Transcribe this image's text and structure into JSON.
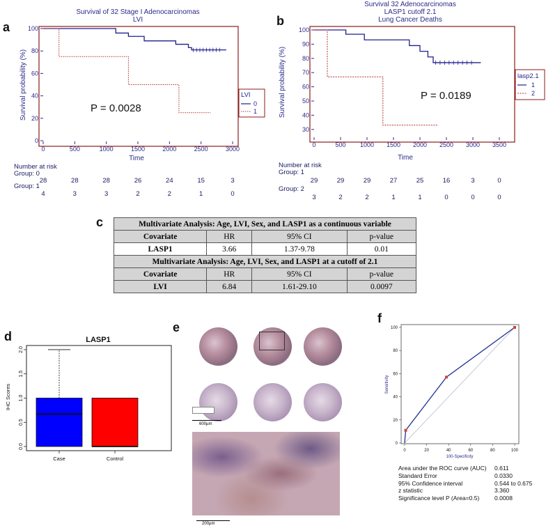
{
  "panels": {
    "a": {
      "letter": "a",
      "title_lines": [
        "Survival of 32 Stage I Adenocarcinomas",
        "LVI"
      ],
      "pvalue": "P = 0.0028",
      "legend_title": "LVI",
      "risk_header": "Number at risk",
      "risk_groups": [
        {
          "label": "Group: 0",
          "values": [
            "28",
            "28",
            "28",
            "26",
            "24",
            "15",
            "3"
          ]
        },
        {
          "label": "Group: 1",
          "values": [
            "4",
            "3",
            "3",
            "2",
            "2",
            "1",
            "0"
          ]
        }
      ]
    },
    "b": {
      "letter": "b",
      "title_lines": [
        "Survival 32 Adenocarcinomas",
        "LASP1 cutoff 2.1",
        "Lung Cancer Deaths"
      ],
      "pvalue": "P = 0.0189",
      "legend_title": "lasp2.1",
      "risk_header": "Number at risk",
      "risk_groups": [
        {
          "label": "Group: 1",
          "values": [
            "29",
            "29",
            "29",
            "27",
            "25",
            "16",
            "3",
            "0"
          ]
        },
        {
          "label": "Group: 2",
          "values": [
            "3",
            "2",
            "2",
            "1",
            "1",
            "0",
            "0",
            "0"
          ]
        }
      ]
    },
    "c": {
      "letter": "c",
      "header1": "Multivariate Analysis: Age, LVI, Sex, and LASP1 as a continuous variable",
      "header2": "Multivariate Analysis: Age, LVI, Sex, and LASP1 at a cutoff of 2.1",
      "columns": [
        "Covariate",
        "HR",
        "95% CI",
        "p-value"
      ],
      "row1": [
        "LASP1",
        "3.66",
        "1.37-9.78",
        "0.01"
      ],
      "row2": [
        "LVI",
        "6.84",
        "1.61-29.10",
        "0.0097"
      ]
    },
    "d": {
      "letter": "d"
    },
    "e": {
      "letter": "e",
      "scale_top": "600µm",
      "scale_bottom": "200µm"
    },
    "f": {
      "letter": "f",
      "stats": [
        {
          "label": "Area under the ROC curve (AUC)",
          "value": "0.611"
        },
        {
          "label": "Standard Error",
          "value": "0.0330"
        },
        {
          "label": "95% Confidence interval",
          "value": "0.544 to 0.675"
        },
        {
          "label": "z statistic",
          "value": "3.360"
        },
        {
          "label": "Significance level P (Area=0.5)",
          "value": "0.0008"
        }
      ]
    }
  },
  "colors": {
    "series_a": "#1f1f8f",
    "series_b": "#b03030",
    "box_case": "#0000ff",
    "box_control": "#ff0000",
    "frame": "#8b1a1a"
  },
  "chart_data": [
    {
      "type": "line",
      "id": "km-a",
      "xlabel": "Time",
      "ylabel": "Survival probability (%)",
      "xlim": [
        0,
        3000
      ],
      "ylim": [
        0,
        100
      ],
      "xticks": [
        0,
        500,
        1000,
        1500,
        2000,
        2500,
        3000
      ],
      "yticks": [
        0,
        20,
        40,
        60,
        80,
        100
      ],
      "legend_entries": [
        "0",
        "1"
      ],
      "series": [
        {
          "name": "0",
          "style": "solid",
          "x": [
            0,
            1150,
            1150,
            1350,
            1350,
            1600,
            1600,
            2100,
            2100,
            2300,
            2300,
            2350,
            2350,
            2900
          ],
          "y": [
            100,
            100,
            96,
            96,
            93,
            93,
            89,
            89,
            86,
            86,
            83,
            83,
            81,
            81
          ]
        },
        {
          "name": "1",
          "style": "dotted",
          "x": [
            0,
            250,
            250,
            1350,
            1350,
            2150,
            2150,
            2650
          ],
          "y": [
            100,
            100,
            75,
            75,
            50,
            50,
            25,
            25
          ]
        }
      ]
    },
    {
      "type": "line",
      "id": "km-b",
      "xlabel": "Time",
      "ylabel": "Survival probability (%)",
      "xlim": [
        0,
        3500
      ],
      "ylim": [
        25,
        100
      ],
      "xticks": [
        0,
        500,
        1000,
        1500,
        2000,
        2500,
        3000,
        3500
      ],
      "yticks": [
        30,
        40,
        50,
        60,
        70,
        80,
        90,
        100
      ],
      "legend_entries": [
        "1",
        "2"
      ],
      "series": [
        {
          "name": "1",
          "style": "solid",
          "x": [
            0,
            600,
            600,
            950,
            950,
            1800,
            1800,
            2000,
            2000,
            2150,
            2150,
            2250,
            2250,
            3150
          ],
          "y": [
            100,
            100,
            97,
            97,
            93,
            93,
            89,
            89,
            85,
            85,
            81,
            81,
            77,
            77
          ]
        },
        {
          "name": "2",
          "style": "dashed",
          "x": [
            0,
            250,
            250,
            1300,
            1300,
            2350
          ],
          "y": [
            100,
            100,
            67,
            67,
            33,
            33
          ]
        }
      ]
    },
    {
      "type": "box",
      "id": "box-d",
      "title": "LASP1",
      "ylabel": "IHC Scores",
      "ylim": [
        0,
        2.1
      ],
      "yticks": [
        0.0,
        0.5,
        1.0,
        1.5,
        2.0
      ],
      "categories": [
        "Case",
        "Control"
      ],
      "boxes": [
        {
          "q1": 0,
          "median": 0.67,
          "q3": 1.0,
          "whisker_low": 0,
          "whisker_high": 2.0
        },
        {
          "q1": 0,
          "median": 0.0,
          "q3": 1.0,
          "whisker_low": 0,
          "whisker_high": 1.0
        }
      ]
    },
    {
      "type": "line",
      "id": "roc-f",
      "xlabel": "100-Specificity",
      "ylabel": "Sensitivity",
      "xlim": [
        0,
        100
      ],
      "ylim": [
        0,
        100
      ],
      "xticks": [
        0,
        20,
        40,
        60,
        80,
        100
      ],
      "yticks": [
        0,
        20,
        40,
        60,
        80,
        100
      ],
      "series": [
        {
          "name": "",
          "x": [
            0,
            1,
            38,
            100
          ],
          "y": [
            0,
            11,
            57,
            100
          ]
        }
      ]
    }
  ]
}
